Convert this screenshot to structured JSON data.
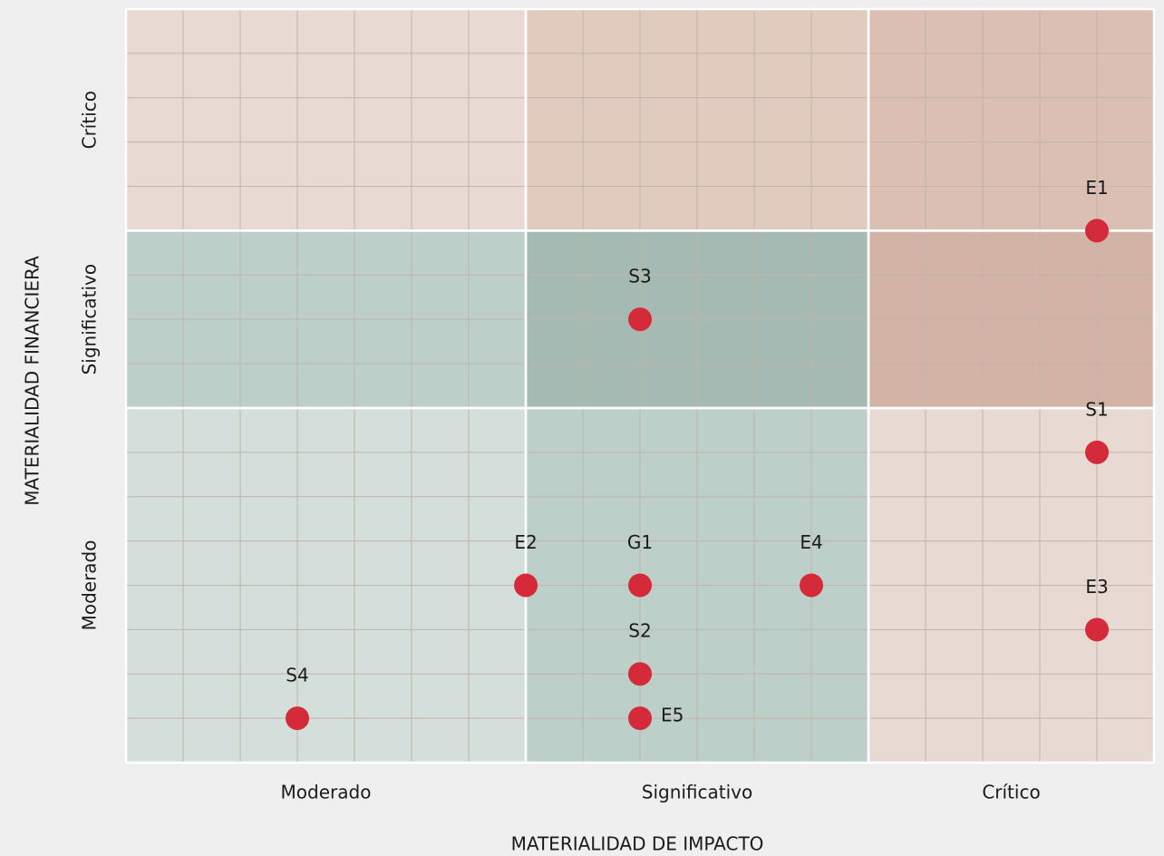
{
  "chart_data": {
    "type": "scatter",
    "x_label": "MATERIALIDAD DE IMPACTO",
    "y_label": "MATERIALIDAD FINANCIERA",
    "xlim": [
      0,
      18
    ],
    "ylim": [
      0,
      17
    ],
    "xticks": [
      0,
      1,
      2,
      3,
      4,
      5,
      6,
      7,
      8,
      9,
      10,
      11,
      12,
      13,
      14,
      15,
      16,
      17,
      18
    ],
    "yticks": [
      0,
      1,
      2,
      3,
      4,
      5,
      6,
      7,
      8,
      9,
      10,
      11,
      12,
      13,
      14,
      15,
      16,
      17
    ],
    "x_zones": [
      {
        "label": "Moderado",
        "range": [
          0,
          7
        ]
      },
      {
        "label": "Significativo",
        "range": [
          7,
          13
        ]
      },
      {
        "label": "Crítico",
        "range": [
          13,
          18
        ]
      }
    ],
    "y_zones": [
      {
        "label": "Moderado",
        "range": [
          0,
          8
        ]
      },
      {
        "label": "Significativo",
        "range": [
          8,
          12
        ]
      },
      {
        "label": "Crítico",
        "range": [
          12,
          17
        ]
      }
    ],
    "zone_colors": [
      [
        "#d4deda",
        "#bccfc8",
        "#e8d9d2"
      ],
      [
        "#bccfc8",
        "#a5bab2",
        "#d3b3a5"
      ],
      [
        "#e8d9d2",
        "#e1cbbe",
        "#dbbfb2"
      ]
    ],
    "color": "#d42a3a",
    "labels": [
      "E1",
      "S3",
      "S1",
      "E2",
      "G1",
      "E4",
      "E3",
      "S2",
      "E5",
      "S4"
    ],
    "x": [
      17,
      9,
      17,
      7,
      9,
      12,
      17,
      9,
      9,
      3
    ],
    "values": [
      12,
      10,
      7,
      4,
      4,
      4,
      3,
      2,
      1,
      1
    ]
  }
}
